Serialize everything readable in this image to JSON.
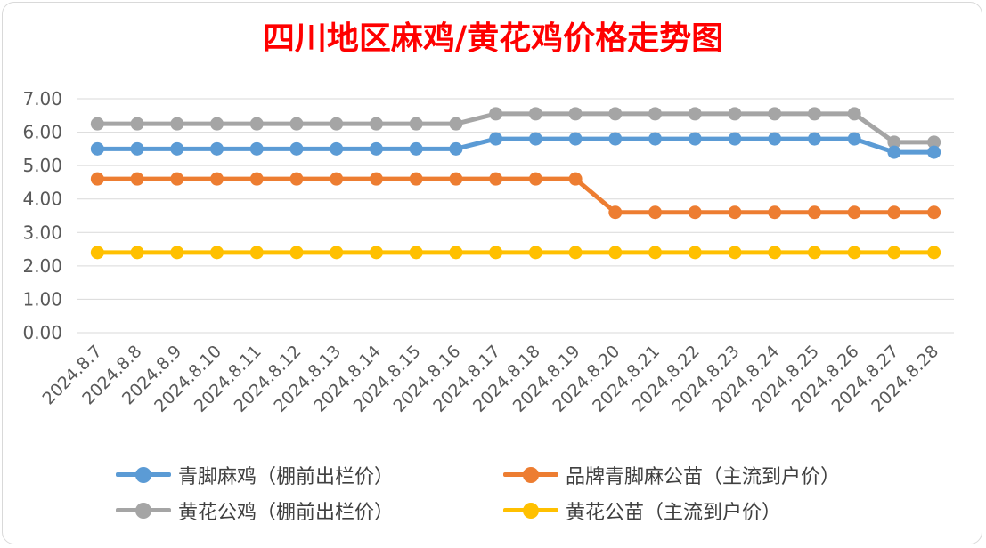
{
  "chart_data": {
    "type": "line",
    "title": "四川地区麻鸡/黄花鸡价格走势图",
    "categories": [
      "2024.8.7",
      "2024.8.8",
      "2024.8.9",
      "2024.8.10",
      "2024.8.11",
      "2024.8.12",
      "2024.8.13",
      "2024.8.14",
      "2024.8.15",
      "2024.8.16",
      "2024.8.17",
      "2024.8.18",
      "2024.8.19",
      "2024.8.20",
      "2024.8.21",
      "2024.8.22",
      "2024.8.23",
      "2024.8.24",
      "2024.8.25",
      "2024.8.26",
      "2024.8.27",
      "2024.8.28"
    ],
    "ylim": [
      0,
      7
    ],
    "yticks": [
      "0.00",
      "1.00",
      "2.00",
      "3.00",
      "4.00",
      "5.00",
      "6.00",
      "7.00"
    ],
    "grid": true,
    "legend_position": "bottom",
    "series": [
      {
        "name": "青脚麻鸡（棚前出栏价）",
        "color": "#5b9bd5",
        "values": [
          5.5,
          5.5,
          5.5,
          5.5,
          5.5,
          5.5,
          5.5,
          5.5,
          5.5,
          5.5,
          5.8,
          5.8,
          5.8,
          5.8,
          5.8,
          5.8,
          5.8,
          5.8,
          5.8,
          5.8,
          5.4,
          5.4
        ]
      },
      {
        "name": "品牌青脚麻公苗（主流到户价）",
        "color": "#ed7d31",
        "values": [
          4.6,
          4.6,
          4.6,
          4.6,
          4.6,
          4.6,
          4.6,
          4.6,
          4.6,
          4.6,
          4.6,
          4.6,
          4.6,
          3.6,
          3.6,
          3.6,
          3.6,
          3.6,
          3.6,
          3.6,
          3.6,
          3.6
        ]
      },
      {
        "name": "黄花公鸡（棚前出栏价）",
        "color": "#a5a5a5",
        "values": [
          6.25,
          6.25,
          6.25,
          6.25,
          6.25,
          6.25,
          6.25,
          6.25,
          6.25,
          6.25,
          6.55,
          6.55,
          6.55,
          6.55,
          6.55,
          6.55,
          6.55,
          6.55,
          6.55,
          6.55,
          5.7,
          5.7
        ]
      },
      {
        "name": "黄花公苗（主流到户价）",
        "color": "#ffc000",
        "values": [
          2.4,
          2.4,
          2.4,
          2.4,
          2.4,
          2.4,
          2.4,
          2.4,
          2.4,
          2.4,
          2.4,
          2.4,
          2.4,
          2.4,
          2.4,
          2.4,
          2.4,
          2.4,
          2.4,
          2.4,
          2.4,
          2.4
        ]
      }
    ]
  }
}
